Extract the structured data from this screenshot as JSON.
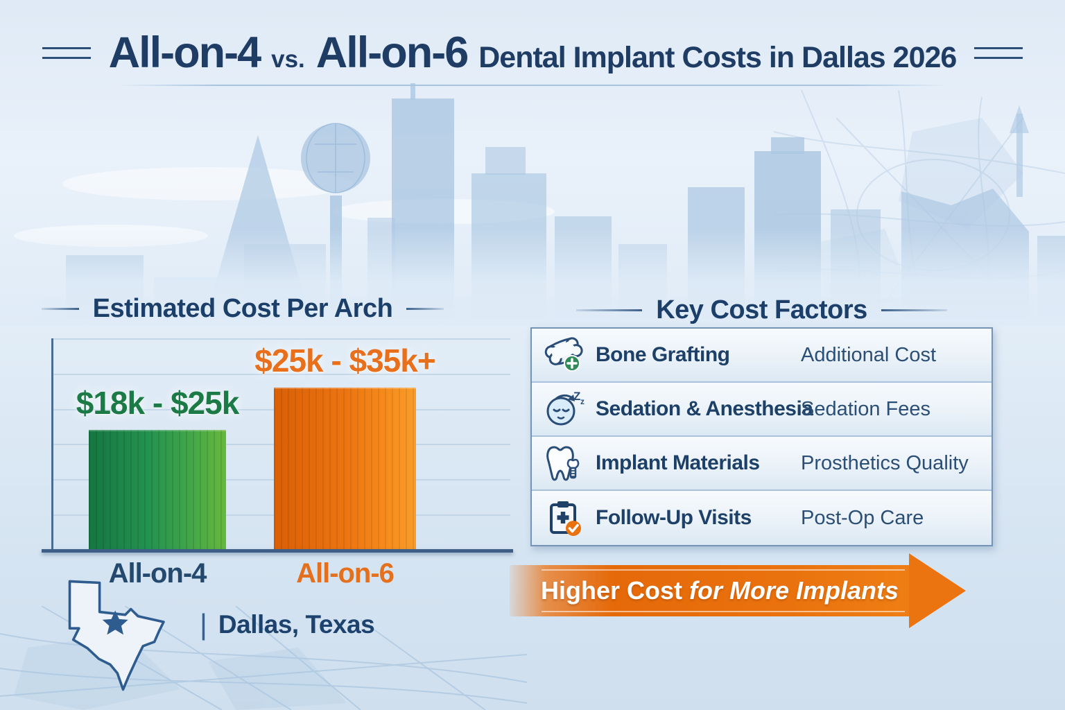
{
  "title": {
    "part1": "All-on-4",
    "vs": "vs.",
    "part2": "All-on-6",
    "part3": "Dental Implant Costs in Dallas 2026"
  },
  "chart_data": {
    "type": "bar",
    "title": "Estimated Cost Per Arch",
    "categories": [
      "All-on-4",
      "All-on-6"
    ],
    "value_labels": [
      "$18k - $25k",
      "$25k - $35k+"
    ],
    "values": [
      22.5,
      30.5
    ],
    "unit": "USD thousands per arch",
    "ylim": [
      0,
      40
    ],
    "grid": true,
    "legend": "none",
    "bar_colors": [
      "#259350",
      "#ec7410"
    ]
  },
  "factors": {
    "header": "Key Cost Factors",
    "rows": [
      {
        "icon": "bone-grafting-icon",
        "factor": "Bone Grafting",
        "detail": "Additional Cost"
      },
      {
        "icon": "sedation-icon",
        "factor": "Sedation & Anesthesia",
        "detail": "Sedation Fees"
      },
      {
        "icon": "tooth-implant-icon",
        "factor": "Implant Materials",
        "detail": "Prosthetics Quality"
      },
      {
        "icon": "clipboard-check-icon",
        "factor": "Follow-Up Visits",
        "detail": "Post-Op Care"
      }
    ]
  },
  "arrow": {
    "bold": "Higher Cost",
    "italic": "for More Implants"
  },
  "location": {
    "divider": "|",
    "label": "Dallas, Texas",
    "icon": "texas-map-icon"
  },
  "colors": {
    "title_navy": "#1e3c64",
    "green_bar_start": "#157742",
    "green_bar_end": "#66b83c",
    "green_label": "#1b7a46",
    "orange_bar_start": "#da5f06",
    "orange_bar_end": "#f89d2a",
    "orange_label": "#e8701c",
    "arrow_orange": "#ec7410",
    "background_blue": "#dfeaf6",
    "skyline_blue": "#adc8e2",
    "table_border": "#7493b5",
    "text_navy": "#24496e"
  }
}
